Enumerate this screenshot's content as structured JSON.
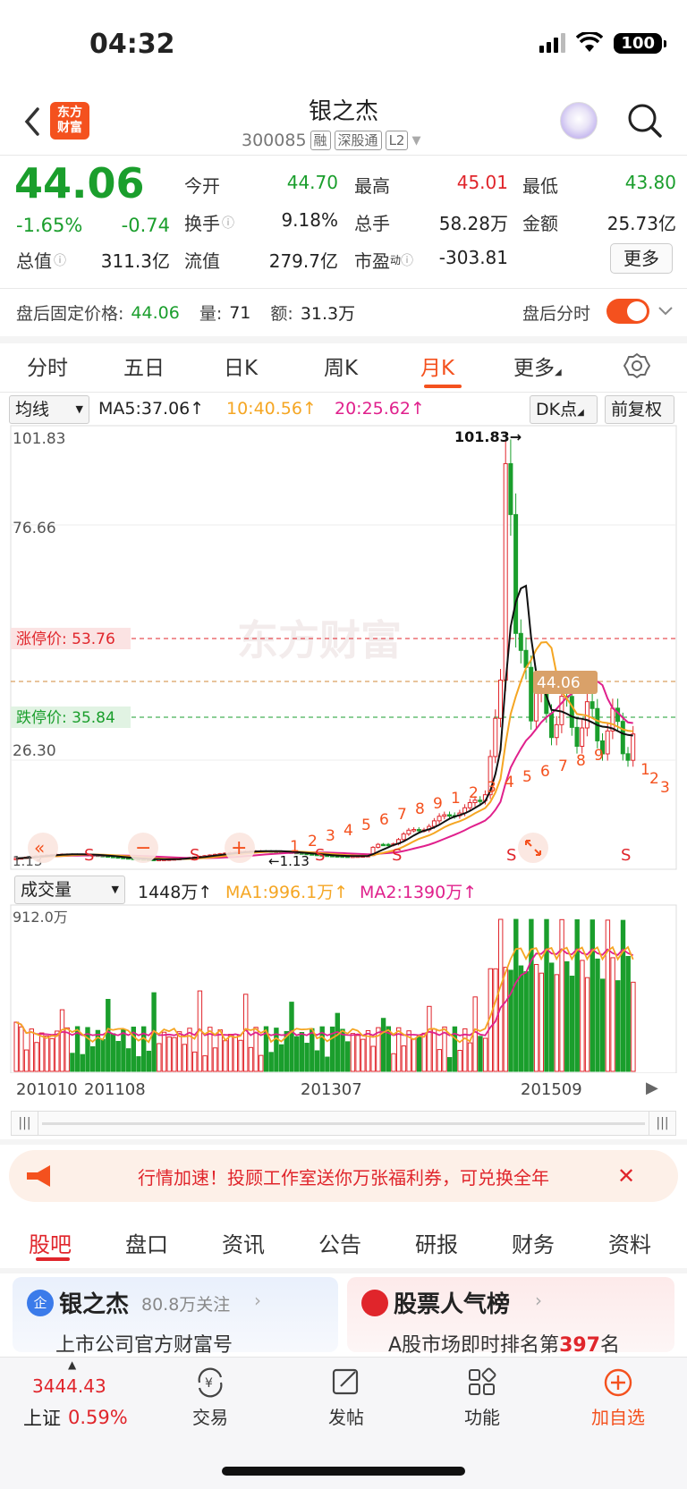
{
  "status": {
    "time": "04:32",
    "battery": "100"
  },
  "header": {
    "logo_line1": "东方",
    "logo_line2": "财富",
    "name": "银之杰",
    "code": "300085",
    "tags": [
      "融",
      "深股通",
      "L2"
    ]
  },
  "quote": {
    "price": "44.06",
    "change_pct": "-1.65%",
    "change_abs": "-0.74",
    "open_label": "今开",
    "open": "44.70",
    "high_label": "最高",
    "high": "45.01",
    "low_label": "最低",
    "low": "43.80",
    "turnover_label": "换手",
    "turnover": "9.18%",
    "volume_label": "总手",
    "volume": "58.28万",
    "amount_label": "金额",
    "amount": "25.73亿",
    "mcap_label": "总值",
    "mcap": "311.3亿",
    "float_label": "流值",
    "float": "279.7亿",
    "pe_label": "市盈",
    "pe_sup": "动",
    "pe": "-303.81",
    "more": "更多"
  },
  "after_hours": {
    "price_label": "盘后固定价格:",
    "price": "44.06",
    "vol_label": "量:",
    "vol": "71",
    "amt_label": "额:",
    "amt": "31.3万",
    "switch_label": "盘后分时"
  },
  "tabs": [
    "分时",
    "五日",
    "日K",
    "周K",
    "月K",
    "更多"
  ],
  "active_tab": "月K",
  "kline": {
    "ma_select": "均线",
    "ma5": "MA5:37.06↑",
    "ma10": "10:40.56↑",
    "ma20": "20:25.62↑",
    "dk_label": "DK点",
    "adj_label": "前复权",
    "y_labels": [
      "101.83",
      "76.66",
      "26.30",
      "1.13"
    ],
    "max_marker": "101.83→",
    "min_marker": "←1.13",
    "limit_up": "涨停价: 53.76",
    "limit_down": "跌停价: 35.84",
    "current_tag": "44.06",
    "watermark": "东方财富",
    "seq_labels": [
      "1",
      "2",
      "3",
      "4",
      "5",
      "6",
      "7",
      "8",
      "9",
      "1",
      "2",
      "3",
      "4",
      "5",
      "6",
      "7",
      "8",
      "9",
      "1",
      "2",
      "3"
    ]
  },
  "volume": {
    "select": "成交量",
    "value": "1448万↑",
    "ma1": "MA1:996.1万↑",
    "ma2": "MA2:1390万↑",
    "max_label": "912.0万",
    "x_labels": [
      "201010",
      "201108",
      "201307",
      "201509"
    ]
  },
  "promo": {
    "text": "行情加速！投顾工作室送你万张福利券，可兑换全年"
  },
  "bottom_tabs": [
    "股吧",
    "盘口",
    "资讯",
    "公告",
    "研报",
    "财务",
    "资料"
  ],
  "cards": {
    "left_title": "银之杰",
    "left_meta": "80.8万关注",
    "left_sub": "上市公司官方财富号",
    "right_title": "股票人气榜",
    "right_sub_a": "A股市场即时排名第",
    "right_rank": "397",
    "right_sub_b": "名"
  },
  "nav": {
    "index_value": "3444.43",
    "index_name": "上证",
    "index_pct": "0.59%",
    "items": [
      "交易",
      "发帖",
      "功能",
      "加自选"
    ]
  },
  "colors": {
    "up": "#e0252b",
    "down": "#1a9e2c",
    "accent": "#f4511e"
  }
}
